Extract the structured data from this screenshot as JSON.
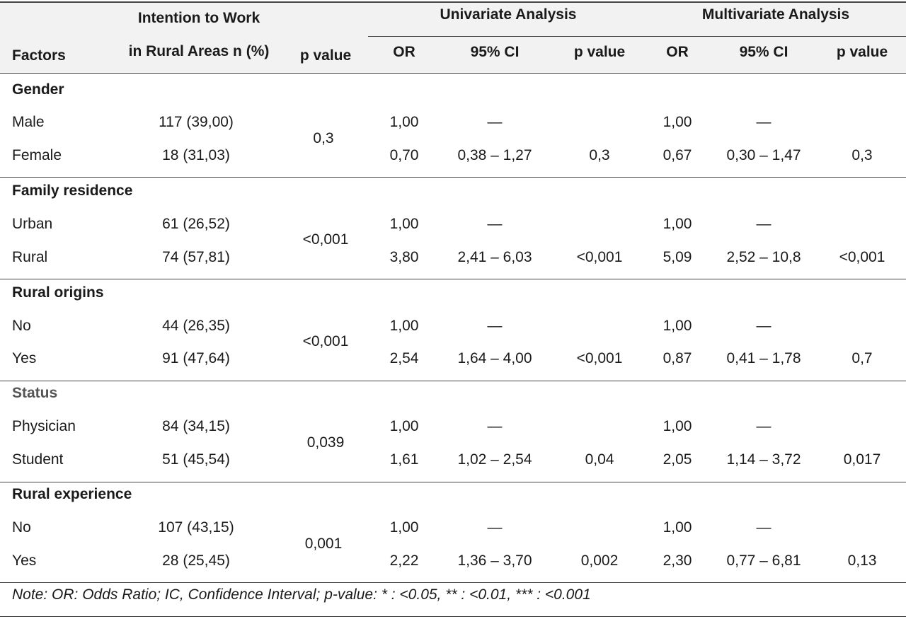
{
  "header": {
    "factors": "Factors",
    "intention_line1": "Intention to Work",
    "intention_line2": "in Rural Areas n (%)",
    "pvalue": "p value",
    "univariate": "Univariate Analysis",
    "multivariate": "Multivariate Analysis",
    "or": "OR",
    "ci": "95% CI",
    "pvalue_sub": "p value"
  },
  "groups": [
    {
      "title": "Gender",
      "pvalue": "0,3",
      "rows": [
        {
          "label": "Male",
          "n": "117 (39,00)",
          "u_or": "1,00",
          "u_ci": "—",
          "u_p": "",
          "m_or": "1,00",
          "m_ci": "—",
          "m_p": ""
        },
        {
          "label": "Female",
          "n": "18 (31,03)",
          "u_or": "0,70",
          "u_ci": "0,38 – 1,27",
          "u_p": "0,3",
          "m_or": "0,67",
          "m_ci": "0,30 – 1,47",
          "m_p": "0,3"
        }
      ]
    },
    {
      "title": "Family residence",
      "pvalue": "<0,001",
      "rows": [
        {
          "label": "Urban",
          "n": "61 (26,52)",
          "u_or": "1,00",
          "u_ci": "—",
          "u_p": "",
          "m_or": "1,00",
          "m_ci": "—",
          "m_p": ""
        },
        {
          "label": "Rural",
          "n": "74 (57,81)",
          "u_or": "3,80",
          "u_ci": "2,41 – 6,03",
          "u_p": "<0,001",
          "m_or": "5,09",
          "m_ci": "2,52 – 10,8",
          "m_p": "<0,001"
        }
      ]
    },
    {
      "title": "Rural origins",
      "pvalue": "<0,001",
      "rows": [
        {
          "label": "No",
          "n": "44 (26,35)",
          "u_or": "1,00",
          "u_ci": "—",
          "u_p": "",
          "m_or": "1,00",
          "m_ci": "—",
          "m_p": ""
        },
        {
          "label": "Yes",
          "n": "91 (47,64)",
          "u_or": "2,54",
          "u_ci": "1,64 – 4,00",
          "u_p": "<0,001",
          "m_or": "0,87",
          "m_ci": "0,41 – 1,78",
          "m_p": "0,7"
        }
      ]
    },
    {
      "title": "Status",
      "pvalue": "0,039",
      "rows": [
        {
          "label": "Physician",
          "n": "84 (34,15)",
          "u_or": "1,00",
          "u_ci": "—",
          "u_p": "",
          "m_or": "1,00",
          "m_ci": "—",
          "m_p": ""
        },
        {
          "label": "Student",
          "n": "51 (45,54)",
          "u_or": "1,61",
          "u_ci": "1,02 – 2,54",
          "u_p": "0,04",
          "m_or": "2,05",
          "m_ci": "1,14 – 3,72",
          "m_p": "0,017"
        }
      ]
    },
    {
      "title": "Rural experience",
      "pvalue": "0,001",
      "rows": [
        {
          "label": "No",
          "n": "107 (43,15)",
          "u_or": "1,00",
          "u_ci": "—",
          "u_p": "",
          "m_or": "1,00",
          "m_ci": "—",
          "m_p": ""
        },
        {
          "label": "Yes",
          "n": "28 (25,45)",
          "u_or": "2,22",
          "u_ci": "1,36 – 3,70",
          "u_p": "0,002",
          "m_or": "2,30",
          "m_ci": "0,77 – 6,81",
          "m_p": "0,13"
        }
      ]
    }
  ],
  "note": "Note: OR: Odds Ratio; IC, Confidence Interval; p-value: * : <0.05, ** : <0.01, *** : <0.001",
  "colors": {
    "header_bg": "#f2f2f2",
    "rule": "#444444",
    "status_title": "#555555"
  }
}
